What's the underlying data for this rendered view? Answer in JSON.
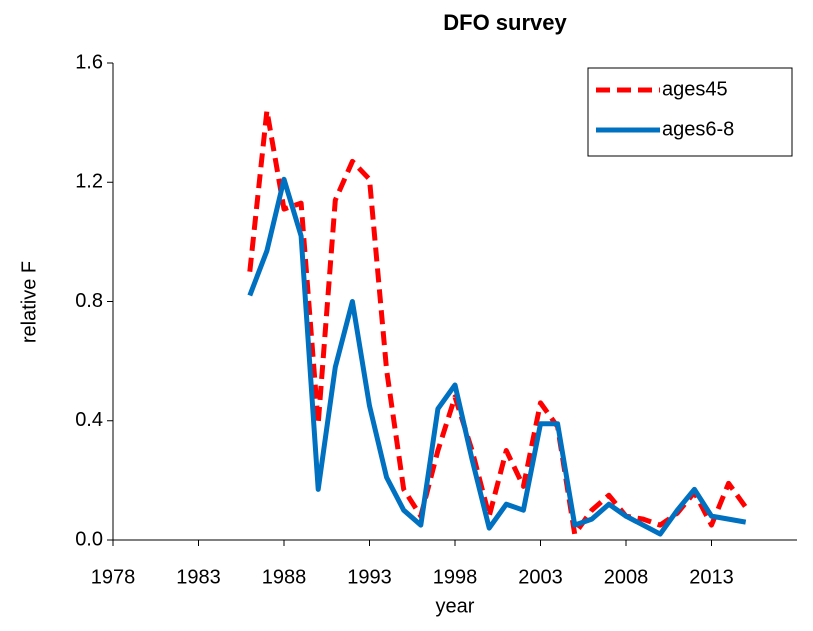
{
  "chart_data": {
    "type": "line",
    "title": "DFO survey",
    "xlabel": "year",
    "ylabel": "relative  F",
    "x": [
      1986,
      1987,
      1988,
      1989,
      1990,
      1991,
      1992,
      1993,
      1994,
      1995,
      1996,
      1997,
      1998,
      1999,
      2000,
      2001,
      2002,
      2003,
      2004,
      2005,
      2006,
      2007,
      2008,
      2009,
      2010,
      2011,
      2012,
      2013,
      2014,
      2015
    ],
    "series": [
      {
        "name": "ages45",
        "color": "#ff0000",
        "dash": true,
        "values": [
          0.9,
          1.44,
          1.11,
          1.13,
          0.39,
          1.14,
          1.27,
          1.21,
          0.57,
          0.17,
          0.08,
          0.3,
          0.48,
          0.3,
          0.08,
          0.3,
          0.18,
          0.46,
          0.38,
          0.02,
          0.1,
          0.15,
          0.08,
          0.07,
          0.05,
          0.09,
          0.16,
          0.05,
          0.19,
          0.11
        ]
      },
      {
        "name": "ages6-8",
        "color": "#0070c0",
        "dash": false,
        "values": [
          0.82,
          0.97,
          1.21,
          1.02,
          0.17,
          0.58,
          0.8,
          0.45,
          0.21,
          0.1,
          0.05,
          0.44,
          0.52,
          0.27,
          0.04,
          0.12,
          0.1,
          0.39,
          0.39,
          0.05,
          0.07,
          0.12,
          0.08,
          0.05,
          0.02,
          0.1,
          0.17,
          0.08,
          0.07,
          0.06
        ]
      }
    ],
    "xlim": [
      1978,
      2018
    ],
    "xticks": [
      1978,
      1983,
      1988,
      1993,
      1998,
      2003,
      2008,
      2013
    ],
    "ylim": [
      0,
      1.6
    ],
    "yticks": [
      {
        "value": 0,
        "label": "0.0"
      },
      0.4,
      0.8,
      1.2,
      1.6
    ],
    "grid": false,
    "legend": "upper right"
  }
}
